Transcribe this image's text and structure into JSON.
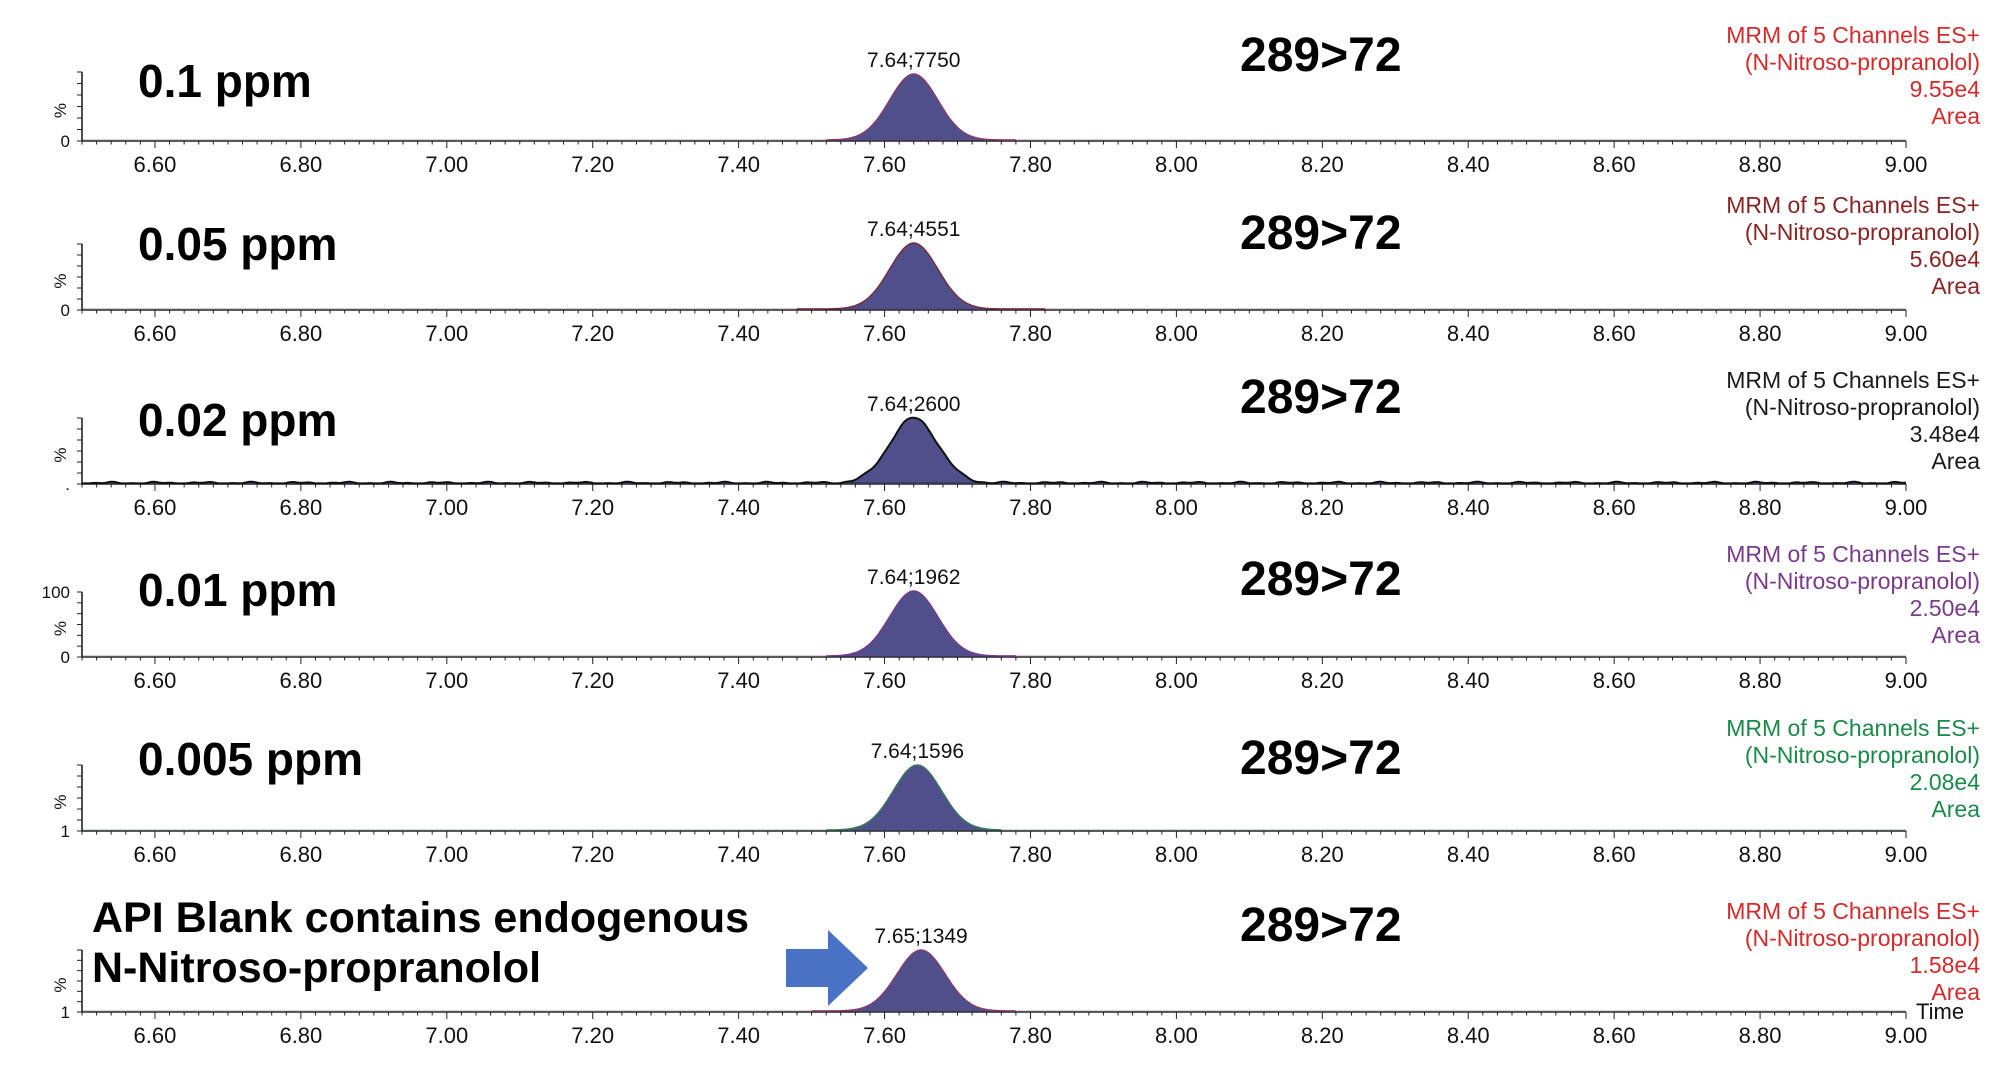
{
  "chart_data": {
    "type": "area",
    "x_axis": {
      "range": [
        6.5,
        9.0
      ],
      "ticks": [
        "6.60",
        "6.80",
        "7.00",
        "7.20",
        "7.40",
        "7.60",
        "7.80",
        "8.00",
        "8.20",
        "8.40",
        "8.60",
        "8.80",
        "9.00"
      ],
      "label": "Time"
    },
    "panels": [
      {
        "concentration": "0.1 ppm",
        "transition": "289>72",
        "peak_label": "7.64;7750",
        "peak_rt": 7.64,
        "peak_width": 0.033,
        "peak_range": [
          7.52,
          7.78
        ],
        "y_axis_label": "%",
        "y_ticks": [
          "",
          "0"
        ],
        "channel": "MRM of 5 Channels ES+",
        "compound": "(N-Nitroso-propranolol)",
        "intensity": "9.55e4",
        "quant": "Area",
        "info_color": "#d42a2a",
        "fill_color": "#4f4f8c",
        "outline_color": "#8a3a6a",
        "noise": 0.0
      },
      {
        "concentration": "0.05 ppm",
        "transition": "289>72",
        "peak_label": "7.64;4551",
        "peak_rt": 7.64,
        "peak_width": 0.033,
        "peak_range": [
          7.48,
          7.82
        ],
        "y_axis_label": "%",
        "y_ticks": [
          "",
          "0"
        ],
        "channel": "MRM of 5 Channels ES+",
        "compound": "(N-Nitroso-propranolol)",
        "intensity": "5.60e4",
        "quant": "Area",
        "info_color": "#8a2424",
        "fill_color": "#4f4f8c",
        "outline_color": "#7a2a3a",
        "noise": 0.0
      },
      {
        "concentration": "0.02 ppm",
        "transition": "289>72",
        "peak_label": "7.64;2600",
        "peak_rt": 7.64,
        "peak_width": 0.033,
        "peak_range": [
          6.5,
          9.0
        ],
        "y_axis_label": "%",
        "y_ticks": [
          "",
          "."
        ],
        "channel": "MRM of 5 Channels ES+",
        "compound": "(N-Nitroso-propranolol)",
        "intensity": "3.48e4",
        "quant": "Area",
        "info_color": "#1a1a1a",
        "fill_color": "#4f4f8c",
        "outline_color": "#111111",
        "noise": 0.02
      },
      {
        "concentration": "0.01 ppm",
        "transition": "289>72",
        "peak_label": "7.64;1962",
        "peak_rt": 7.64,
        "peak_width": 0.033,
        "peak_range": [
          7.52,
          7.78
        ],
        "y_axis_label": "%",
        "y_ticks": [
          "100",
          "0"
        ],
        "channel": "MRM of 5 Channels ES+",
        "compound": "(N-Nitroso-propranolol)",
        "intensity": "2.50e4",
        "quant": "Area",
        "info_color": "#7a3a8c",
        "fill_color": "#4f4f8c",
        "outline_color": "#7a3a8c",
        "noise": 0.0
      },
      {
        "concentration": "0.005 ppm",
        "transition": "289>72",
        "peak_label": "7.64;1596",
        "peak_rt": 7.645,
        "peak_width": 0.033,
        "peak_range": [
          7.52,
          7.76
        ],
        "y_axis_label": "%",
        "y_ticks": [
          "",
          "1"
        ],
        "channel": "MRM of 5 Channels ES+",
        "compound": "(N-Nitroso-propranolol)",
        "intensity": "2.08e4",
        "quant": "Area",
        "info_color": "#1a8a4a",
        "fill_color": "#4f4f8c",
        "outline_color": "#3a7a5a",
        "noise": 0.0
      },
      {
        "concentration": "",
        "transition": "289>72",
        "peak_label": "7.65;1349",
        "peak_rt": 7.65,
        "peak_width": 0.033,
        "peak_range": [
          7.5,
          7.78
        ],
        "y_axis_label": "%",
        "y_ticks": [
          "",
          "1"
        ],
        "channel": "MRM of 5 Channels ES+",
        "compound": "(N-Nitroso-propranolol)",
        "intensity": "1.58e4",
        "quant": "Area",
        "info_color": "#d42a2a",
        "fill_color": "#4f4f8c",
        "outline_color": "#8a3a6a",
        "noise": 0.0
      }
    ],
    "annotation": {
      "line1": "API Blank contains endogenous",
      "line2": "N-Nitroso-propranolol",
      "arrow_color": "#4a72c4"
    }
  }
}
